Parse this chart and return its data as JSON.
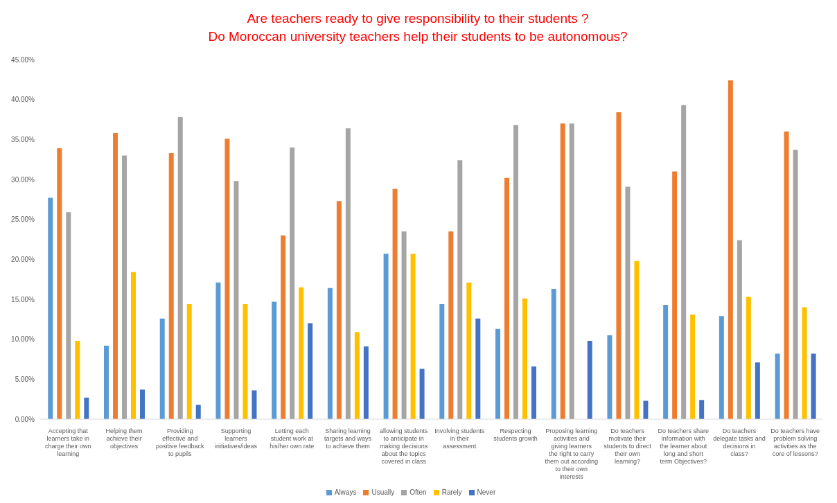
{
  "chart_data": {
    "type": "bar",
    "title": "Are teachers ready to give responsibility to their students ?",
    "subtitle": "Do Moroccan university teachers help their students to be autonomous?",
    "categories": [
      "Accepting that learners take in charge their own learning",
      "Helping them achieve their objectives",
      "Providing effective and positive feedback to pupils",
      "Supporting learners initiatives/ideas",
      "Letting each student work at his/her own rate",
      "Sharing learning targets and ways to achieve them",
      "allowing students to anticipate in making decisions about the topics covered in class",
      "Involving students in their assessment",
      "Respecting students growth",
      "Proposing learning activities and giving learners the right to carry them out according to their own interests",
      "Do teachers motivate their students to direct their own learning?",
      "Do teachers share information with the learner about long and short term Objectives?",
      "Do teachers delegate tasks and decisions in class?",
      "Do teachers have problem solving activities as the core of lessons?"
    ],
    "series": [
      {
        "name": "Always",
        "color": "#5b9bd5",
        "values": [
          27.7,
          9.2,
          12.6,
          17.1,
          14.7,
          16.4,
          20.7,
          14.4,
          11.3,
          16.3,
          10.5,
          14.3,
          12.9,
          8.2
        ]
      },
      {
        "name": "Usually",
        "color": "#ed7d31",
        "values": [
          33.9,
          35.8,
          33.3,
          35.1,
          23.0,
          27.3,
          28.8,
          23.5,
          30.2,
          37.0,
          38.4,
          31.0,
          42.4,
          36.0
        ]
      },
      {
        "name": "Often",
        "color": "#a5a5a5",
        "values": [
          25.9,
          33.0,
          37.8,
          29.8,
          34.0,
          36.4,
          23.5,
          32.4,
          36.8,
          37.0,
          29.1,
          39.3,
          22.4,
          33.7
        ]
      },
      {
        "name": "Rarely",
        "color": "#ffc000",
        "values": [
          9.8,
          18.4,
          14.4,
          14.4,
          16.5,
          10.9,
          20.7,
          17.1,
          15.1,
          null,
          19.8,
          13.1,
          15.3,
          14.0
        ]
      },
      {
        "name": "Never",
        "color": "#4472c4",
        "values": [
          2.7,
          3.7,
          1.8,
          3.6,
          12.0,
          9.1,
          6.3,
          12.6,
          6.6,
          9.8,
          2.3,
          2.4,
          7.1,
          8.2
        ]
      }
    ],
    "ylim": [
      0,
      45
    ],
    "yticks": [
      {
        "value": 0,
        "label": "0.00%"
      },
      {
        "value": 5,
        "label": "5.00%"
      },
      {
        "value": 10,
        "label": "10.00%"
      },
      {
        "value": 15,
        "label": "15.00%"
      },
      {
        "value": 20,
        "label": "20.00%"
      },
      {
        "value": 25,
        "label": "25.00%"
      },
      {
        "value": 30,
        "label": "30.00%"
      },
      {
        "value": 35,
        "label": "35.00%"
      },
      {
        "value": 40,
        "label": "40.00%"
      },
      {
        "value": 45,
        "label": "45.00%"
      }
    ],
    "grid": false,
    "legend": "bottom"
  }
}
